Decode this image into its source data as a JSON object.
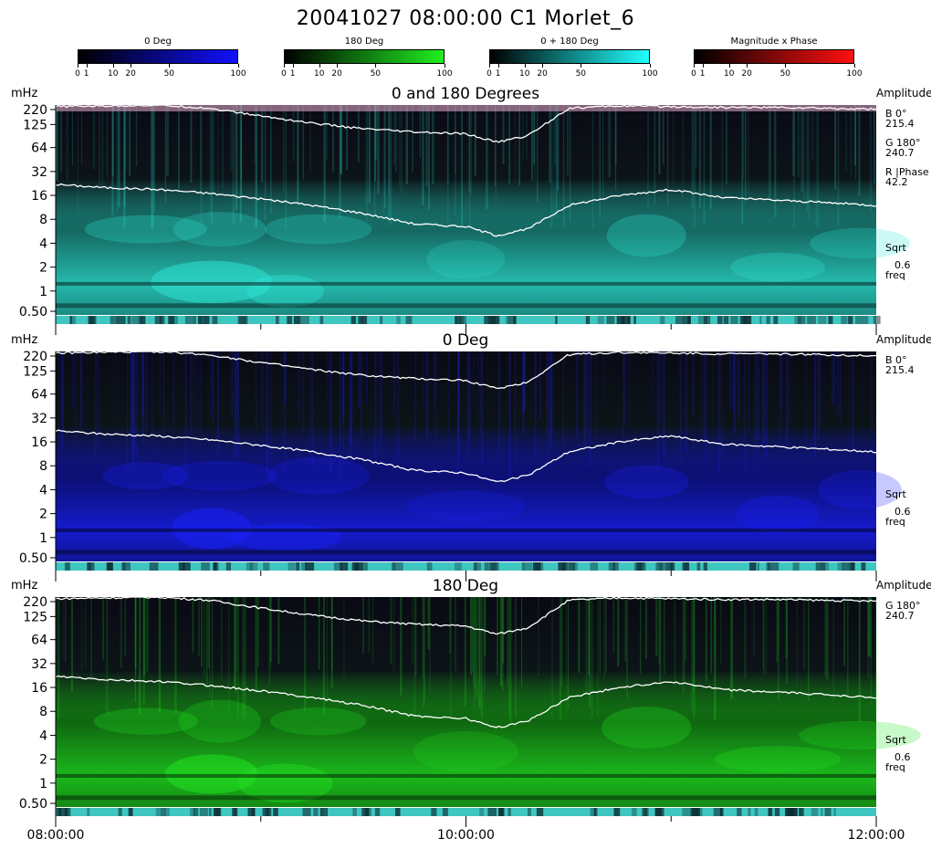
{
  "title": "20041027 08:00:00 C1 Morlet_6",
  "colorbars": [
    {
      "label": "0 Deg",
      "from": "#000000",
      "to": "#1010ff",
      "ticks": [
        "0",
        "1",
        "10",
        "20",
        "50",
        "100"
      ]
    },
    {
      "label": "180 Deg",
      "from": "#000000",
      "to": "#20f020",
      "ticks": [
        "0",
        "1",
        "10",
        "20",
        "50",
        "100"
      ]
    },
    {
      "label": "0 + 180 Deg",
      "from": "#000000",
      "to": "#20ffff",
      "ticks": [
        "0",
        "1",
        "10",
        "20",
        "50",
        "100"
      ]
    },
    {
      "label": "Magnitude x Phase",
      "from": "#000000",
      "to": "#ff1010",
      "ticks": [
        "0",
        "1",
        "10",
        "20",
        "50",
        "100"
      ]
    }
  ],
  "panels": [
    {
      "title": "0 and 180 Degrees",
      "unit": "mHz",
      "ylabels": [
        "220",
        "125",
        "64",
        "32",
        "16",
        "8",
        "4",
        "2",
        "1",
        "0.50"
      ],
      "right_header": "Amplitude",
      "right_notes": [
        {
          "name": "B 0°",
          "value": "215.4"
        },
        {
          "name": "G 180°",
          "value": "240.7"
        },
        {
          "name": "R |Phase",
          "value": "42.2"
        }
      ],
      "sqrt_label": "Sqrt",
      "sqrt_value": "0.6",
      "freq_label": "freq",
      "style": "cyan",
      "hue": "#2ee8d8"
    },
    {
      "title": "0 Deg",
      "unit": "mHz",
      "ylabels": [
        "220",
        "125",
        "64",
        "32",
        "16",
        "8",
        "4",
        "2",
        "1",
        "0.50"
      ],
      "right_header": "Amplitude",
      "right_notes": [
        {
          "name": "B 0°",
          "value": "215.4"
        }
      ],
      "sqrt_label": "Sqrt",
      "sqrt_value": "0.6",
      "freq_label": "freq",
      "style": "blue",
      "hue": "#1a22ff"
    },
    {
      "title": "180 Deg",
      "unit": "mHz",
      "ylabels": [
        "220",
        "125",
        "64",
        "32",
        "16",
        "8",
        "4",
        "2",
        "1",
        "0.50"
      ],
      "right_header": "Amplitude",
      "right_notes": [
        {
          "name": "G 180°",
          "value": "240.7"
        }
      ],
      "sqrt_label": "Sqrt",
      "sqrt_value": "0.6",
      "freq_label": "freq",
      "style": "green",
      "hue": "#22e622"
    }
  ],
  "xaxis": {
    "labels": [
      "08:00:00",
      "10:00:00",
      "12:00:00"
    ]
  },
  "chart_data": {
    "type": "heatmap",
    "title": "20041027 08:00:00 C1 Morlet_6",
    "x_range": [
      "08:00:00",
      "12:00:00"
    ],
    "y_unit": "mHz",
    "y_scale": "log",
    "y_range": [
      0.5,
      220
    ],
    "y_ticks": [
      220,
      125,
      64,
      32,
      16,
      8,
      4,
      2,
      1,
      0.5
    ],
    "series": [
      {
        "name": "0 and 180 Degrees",
        "amplitude": {
          "B 0°": 215.4,
          "G 180°": 240.7,
          "R |Phase": 42.2
        },
        "sqrt": 0.6
      },
      {
        "name": "0 Deg",
        "amplitude": {
          "B 0°": 215.4
        },
        "sqrt": 0.6
      },
      {
        "name": "180 Deg",
        "amplitude": {
          "G 180°": 240.7
        },
        "sqrt": 0.6
      }
    ],
    "overlay_curves": {
      "x_hours": [
        8.0,
        8.25,
        8.5,
        8.75,
        9.0,
        9.25,
        9.5,
        9.75,
        10.0,
        10.15,
        10.3,
        10.5,
        10.75,
        11.0,
        11.25,
        11.5,
        11.75,
        12.0
      ],
      "lower_mHz": [
        22,
        20,
        19,
        17,
        14.5,
        12,
        9.5,
        7,
        6.5,
        5,
        6,
        12,
        16,
        19,
        15,
        14,
        13,
        12
      ],
      "upper_mHz": [
        210,
        215,
        220,
        200,
        160,
        130,
        110,
        100,
        95,
        75,
        90,
        200,
        215,
        210,
        205,
        205,
        200,
        195
      ]
    }
  }
}
